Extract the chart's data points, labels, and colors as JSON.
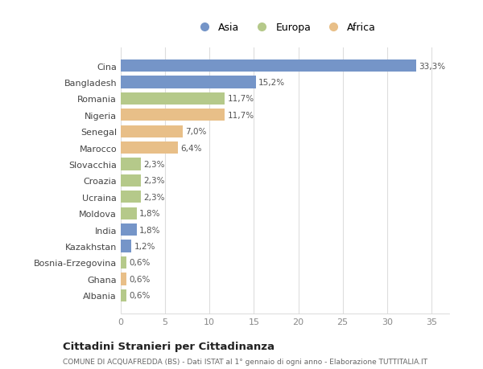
{
  "categories": [
    "Cina",
    "Bangladesh",
    "Romania",
    "Nigeria",
    "Senegal",
    "Marocco",
    "Slovacchia",
    "Croazia",
    "Ucraina",
    "Moldova",
    "India",
    "Kazakhstan",
    "Bosnia-Erzegovina",
    "Ghana",
    "Albania"
  ],
  "values": [
    33.3,
    15.2,
    11.7,
    11.7,
    7.0,
    6.4,
    2.3,
    2.3,
    2.3,
    1.8,
    1.8,
    1.2,
    0.6,
    0.6,
    0.6
  ],
  "labels": [
    "33,3%",
    "15,2%",
    "11,7%",
    "11,7%",
    "7,0%",
    "6,4%",
    "2,3%",
    "2,3%",
    "2,3%",
    "1,8%",
    "1,8%",
    "1,2%",
    "0,6%",
    "0,6%",
    "0,6%"
  ],
  "colors": [
    "#7595c8",
    "#7595c8",
    "#b5c98a",
    "#e8bf88",
    "#e8bf88",
    "#e8bf88",
    "#b5c98a",
    "#b5c98a",
    "#b5c98a",
    "#b5c98a",
    "#7595c8",
    "#7595c8",
    "#b5c98a",
    "#e8bf88",
    "#b5c98a"
  ],
  "legend": [
    {
      "label": "Asia",
      "color": "#7595c8"
    },
    {
      "label": "Europa",
      "color": "#b5c98a"
    },
    {
      "label": "Africa",
      "color": "#e8bf88"
    }
  ],
  "xlim": [
    0,
    37
  ],
  "xticks": [
    0,
    5,
    10,
    15,
    20,
    25,
    30,
    35
  ],
  "title": "Cittadini Stranieri per Cittadinanza",
  "subtitle": "COMUNE DI ACQUAFREDDA (BS) - Dati ISTAT al 1° gennaio di ogni anno - Elaborazione TUTTITALIA.IT",
  "bg_color": "#ffffff",
  "bar_height": 0.75
}
